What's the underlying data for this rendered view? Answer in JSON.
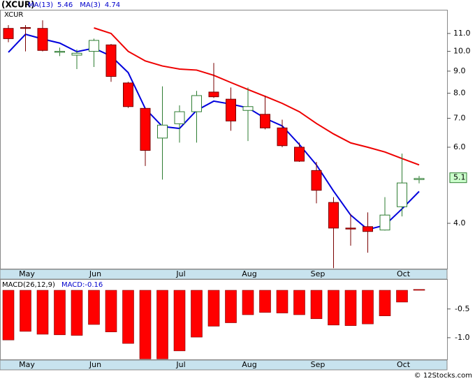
{
  "chart_data": [
    {
      "type": "candlestick",
      "title": "(XCUR)",
      "symbol": "XCUR",
      "categories": [
        null,
        "May",
        null,
        null,
        null,
        "Jun",
        null,
        null,
        null,
        null,
        "Jul",
        null,
        null,
        null,
        "Aug",
        null,
        null,
        null,
        "Sep",
        null,
        null,
        null,
        null,
        "Oct",
        null
      ],
      "open": [
        11.3,
        11.35,
        11.3,
        9.95,
        9.8,
        10.0,
        10.35,
        8.45,
        7.38,
        6.3,
        6.8,
        7.25,
        8.05,
        7.75,
        7.3,
        7.15,
        6.65,
        6.0,
        5.3,
        4.47,
        3.9,
        3.93,
        3.86,
        4.37,
        5.05
      ],
      "high": [
        11.5,
        11.5,
        11.8,
        10.2,
        10.1,
        10.7,
        10.4,
        8.5,
        7.4,
        8.3,
        7.5,
        8.1,
        9.4,
        8.25,
        8.25,
        7.9,
        6.95,
        6.15,
        5.55,
        4.6,
        4.2,
        4.24,
        4.6,
        5.8,
        5.15
      ],
      "low": [
        10.5,
        10.0,
        10.0,
        9.75,
        9.1,
        9.2,
        8.5,
        7.4,
        5.43,
        5.05,
        6.15,
        6.15,
        7.8,
        6.55,
        6.2,
        6.6,
        6.0,
        5.55,
        4.45,
        3.15,
        3.55,
        3.42,
        3.85,
        4.15,
        4.95
      ],
      "close": [
        10.7,
        11.3,
        10.05,
        10.0,
        9.9,
        10.6,
        8.75,
        7.45,
        5.9,
        6.75,
        7.25,
        7.9,
        7.85,
        6.9,
        7.45,
        6.65,
        6.05,
        5.57,
        4.77,
        3.9,
        3.88,
        3.83,
        4.18,
        4.96,
        5.08
      ],
      "up_color": "#ffffff",
      "down_color": "#ff0000",
      "series": [
        {
          "name": "MA(3)",
          "color": "#0000dd",
          "legend_value": 4.74,
          "values": [
            9.95,
            10.95,
            10.68,
            10.45,
            9.98,
            10.17,
            9.75,
            8.93,
            7.37,
            6.7,
            6.63,
            7.3,
            7.67,
            7.55,
            7.4,
            7.0,
            6.72,
            6.09,
            5.46,
            4.75,
            4.18,
            3.87,
            3.96,
            4.32,
            4.74
          ]
        },
        {
          "name": "MA(13)",
          "color": "#ee0000",
          "legend_value": 5.46,
          "values": [
            null,
            null,
            null,
            null,
            null,
            11.33,
            11.0,
            10.0,
            9.5,
            9.25,
            9.1,
            9.05,
            8.8,
            8.47,
            8.16,
            7.87,
            7.58,
            7.25,
            6.81,
            6.44,
            6.14,
            6.0,
            5.85,
            5.65,
            5.46
          ]
        }
      ],
      "log_scale": true,
      "ylim": [
        3.13,
        12.48
      ],
      "yticks": [
        {
          "value": 4,
          "label": "4.0"
        },
        {
          "value": 6,
          "label": "6.0"
        },
        {
          "value": 7,
          "label": "7.0"
        },
        {
          "value": 8,
          "label": "8.0"
        },
        {
          "value": 9,
          "label": "9.0"
        },
        {
          "value": 10,
          "label": "10.0"
        },
        {
          "value": 11,
          "label": "11.0"
        }
      ],
      "last_price_label": 5.1
    },
    {
      "type": "bar",
      "title": "MACD(26,12,9)",
      "value_text": "MACD:-0.16",
      "categories": [
        null,
        "May",
        null,
        null,
        null,
        "Jun",
        null,
        null,
        null,
        null,
        "Jul",
        null,
        null,
        null,
        "Aug",
        null,
        null,
        null,
        "Sep",
        null,
        null,
        null,
        null,
        "Oct",
        null
      ],
      "values": [
        -1.04,
        -0.89,
        -0.94,
        -0.95,
        -0.96,
        -0.77,
        -0.9,
        -1.1,
        -1.37,
        -1.37,
        -1.23,
        -0.99,
        -0.8,
        -0.74,
        -0.6,
        -0.56,
        -0.57,
        -0.6,
        -0.67,
        -0.78,
        -0.79,
        -0.76,
        -0.62,
        -0.38,
        -0.16
      ],
      "color": "#ff0000",
      "ylim": [
        -1.39,
        0.02
      ],
      "yticks": [
        -0.5,
        {
          "value": -1,
          "label": "-1.0"
        }
      ]
    },
    {
      "type": "text",
      "title": "© 12Stocks.com"
    }
  ]
}
